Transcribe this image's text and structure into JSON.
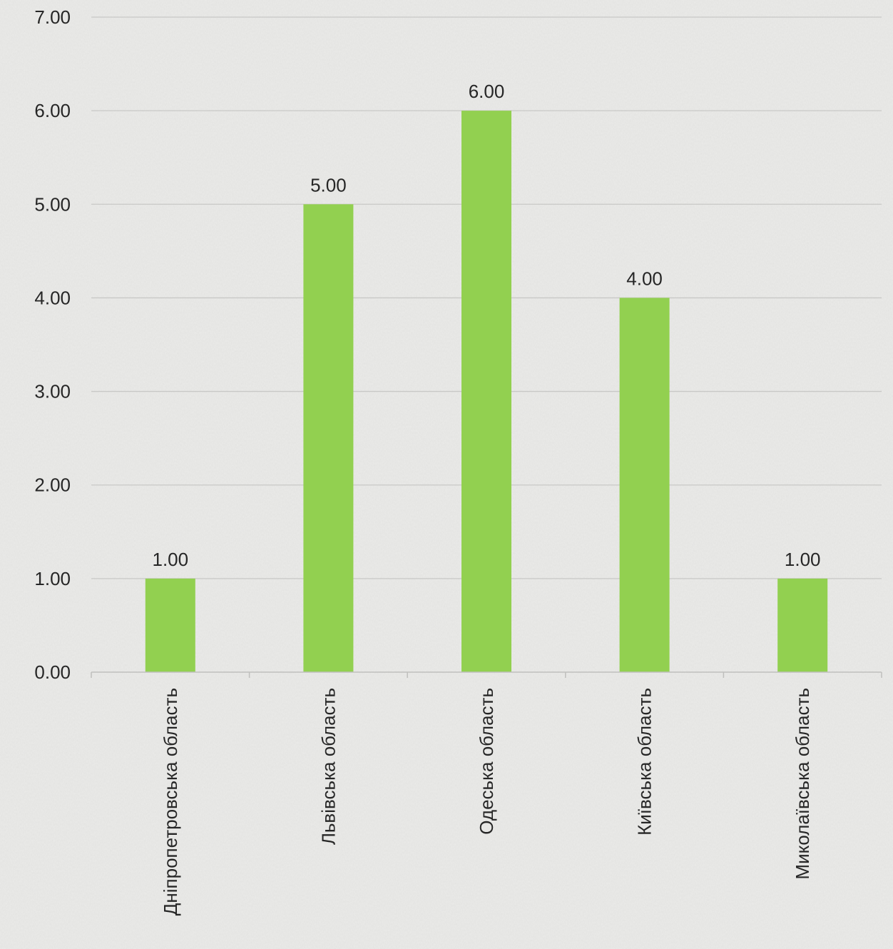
{
  "chart_data": {
    "type": "bar",
    "title": "",
    "xlabel": "",
    "ylabel": "",
    "categories": [
      "Дніпропетровська область",
      "Львівська область",
      "Одеська область",
      "Київська  область",
      "Миколаївська область"
    ],
    "values": [
      1.0,
      5.0,
      6.0,
      4.0,
      1.0
    ],
    "data_labels": [
      "1.00",
      "5.00",
      "6.00",
      "4.00",
      "1.00"
    ],
    "ylim": [
      0,
      7
    ],
    "y_ticks": [
      0,
      1,
      2,
      3,
      4,
      5,
      6,
      7
    ],
    "y_tick_labels": [
      "0.00",
      "1.00",
      "2.00",
      "3.00",
      "4.00",
      "5.00",
      "6.00",
      "7.00"
    ],
    "grid": true,
    "legend": "none",
    "colors": {
      "bar": "#92d050",
      "grid": "#c8c8c6",
      "text": "#262626",
      "background": "#ebebe9"
    }
  }
}
